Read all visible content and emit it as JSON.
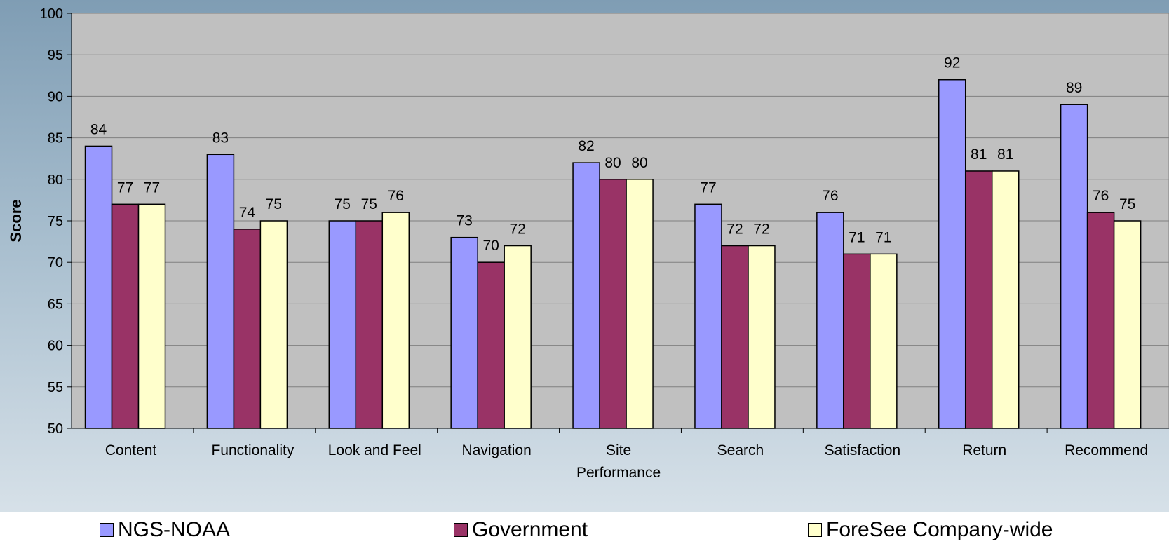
{
  "chart_data": {
    "type": "bar",
    "title": "",
    "xlabel": "",
    "ylabel": "Score",
    "ylim": [
      50,
      100
    ],
    "ytick_step": 5,
    "yticks": [
      "50",
      "55",
      "60",
      "65",
      "70",
      "75",
      "80",
      "85",
      "90",
      "95",
      "100"
    ],
    "categories": [
      [
        "Content"
      ],
      [
        "Functionality"
      ],
      [
        "Look and Feel"
      ],
      [
        "Navigation"
      ],
      [
        "Site",
        "Performance"
      ],
      [
        "Search"
      ],
      [
        "Satisfaction"
      ],
      [
        "Return"
      ],
      [
        "Recommend"
      ]
    ],
    "series": [
      {
        "name": "NGS-NOAA",
        "color": "#9999ff",
        "values": [
          84,
          83,
          75,
          73,
          82,
          77,
          76,
          92,
          89
        ]
      },
      {
        "name": "Government",
        "color": "#993366",
        "values": [
          77,
          74,
          75,
          70,
          80,
          72,
          71,
          81,
          76
        ]
      },
      {
        "name": "ForeSee Company-wide",
        "color": "#ffffcc",
        "values": [
          77,
          75,
          76,
          72,
          80,
          72,
          71,
          81,
          75
        ]
      }
    ],
    "grid": true,
    "data_labels": true,
    "legend_position": "bottom",
    "plot_background": "#c0c0c0"
  }
}
